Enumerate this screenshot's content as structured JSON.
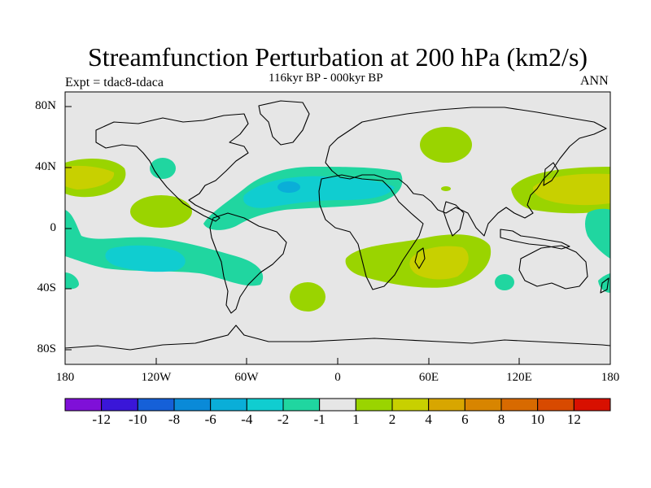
{
  "title": "Streamfunction Perturbation at 200 hPa (km2/s)",
  "subtitle_left": "Expt = tdac8-tdaca",
  "subtitle_center": "116kyr BP - 000kyr BP",
  "subtitle_right": "ANN",
  "lat_labels": [
    "80N",
    "40N",
    "0",
    "40S",
    "80S"
  ],
  "lon_labels": [
    "180",
    "120W",
    "60W",
    "0",
    "60E",
    "120E",
    "180"
  ],
  "colorbar": {
    "colors": [
      "#7f10d8",
      "#3a16d8",
      "#1560d8",
      "#0a8ad8",
      "#0aaed8",
      "#10cdd0",
      "#20d6a0",
      "#e6e6e6",
      "#9ad400",
      "#c8d000",
      "#d8a600",
      "#d88500",
      "#d86a00",
      "#d84a00",
      "#d81000"
    ],
    "labels": [
      "-12",
      "-10",
      "-8",
      "-6",
      "-4",
      "-2",
      "-1",
      "1",
      "2",
      "4",
      "6",
      "8",
      "10",
      "12"
    ]
  },
  "colors": {
    "background_field": "#e6e6e6",
    "coastline": "#000000"
  }
}
